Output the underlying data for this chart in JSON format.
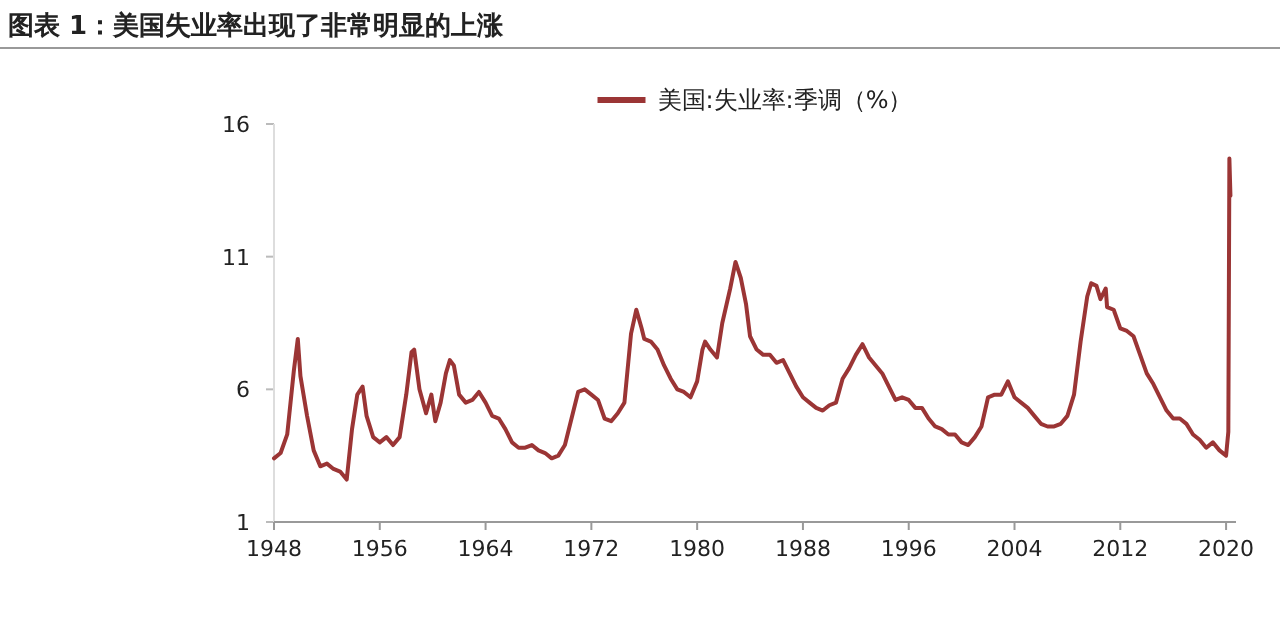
{
  "chart_data": {
    "type": "line",
    "title": "图表 1：美国失业率出现了非常明显的上涨",
    "legend": "top",
    "x": [
      1948.0,
      1948.5,
      1949.0,
      1949.5,
      1949.8,
      1950.0,
      1950.5,
      1951.0,
      1951.5,
      1952.0,
      1952.5,
      1953.0,
      1953.5,
      1953.9,
      1954.3,
      1954.7,
      1955.0,
      1955.5,
      1956.0,
      1956.5,
      1957.0,
      1957.5,
      1958.0,
      1958.4,
      1958.6,
      1959.0,
      1959.5,
      1959.9,
      1960.2,
      1960.6,
      1961.0,
      1961.3,
      1961.6,
      1962.0,
      1962.5,
      1963.0,
      1963.5,
      1964.0,
      1964.5,
      1965.0,
      1965.5,
      1966.0,
      1966.5,
      1967.0,
      1967.5,
      1968.0,
      1968.5,
      1969.0,
      1969.5,
      1970.0,
      1970.5,
      1971.0,
      1971.5,
      1972.0,
      1972.5,
      1973.0,
      1973.5,
      1974.0,
      1974.5,
      1975.0,
      1975.4,
      1975.8,
      1976.0,
      1976.5,
      1977.0,
      1977.5,
      1978.0,
      1978.5,
      1979.0,
      1979.5,
      1980.0,
      1980.4,
      1980.6,
      1981.0,
      1981.5,
      1981.9,
      1982.5,
      1982.9,
      1983.3,
      1983.7,
      1984.0,
      1984.5,
      1985.0,
      1985.5,
      1986.0,
      1986.5,
      1987.0,
      1987.5,
      1988.0,
      1988.5,
      1989.0,
      1989.5,
      1990.0,
      1990.5,
      1991.0,
      1991.5,
      1992.0,
      1992.5,
      1993.0,
      1993.5,
      1994.0,
      1994.5,
      1995.0,
      1995.5,
      1996.0,
      1996.5,
      1997.0,
      1997.5,
      1998.0,
      1998.5,
      1999.0,
      1999.5,
      2000.0,
      2000.5,
      2001.0,
      2001.5,
      2002.0,
      2002.5,
      2003.0,
      2003.5,
      2004.0,
      2004.5,
      2005.0,
      2005.5,
      2006.0,
      2006.5,
      2007.0,
      2007.5,
      2008.0,
      2008.5,
      2009.0,
      2009.5,
      2009.8,
      2010.2,
      2010.5,
      2010.9,
      2011.0,
      2011.5,
      2012.0,
      2012.5,
      2013.0,
      2013.5,
      2014.0,
      2014.5,
      2015.0,
      2015.5,
      2016.0,
      2016.5,
      2017.0,
      2017.5,
      2018.0,
      2018.5,
      2019.0,
      2019.5,
      2020.0,
      2020.17,
      2020.25,
      2020.33
    ],
    "series": [
      {
        "name": "美国:失业率:季调（%）",
        "color": "#9b3535",
        "values": [
          3.4,
          3.6,
          4.3,
          6.7,
          7.9,
          6.5,
          5.0,
          3.7,
          3.1,
          3.2,
          3.0,
          2.9,
          2.6,
          4.5,
          5.8,
          6.1,
          5.0,
          4.2,
          4.0,
          4.2,
          3.9,
          4.2,
          5.8,
          7.4,
          7.5,
          6.0,
          5.1,
          5.8,
          4.8,
          5.5,
          6.6,
          7.1,
          6.9,
          5.8,
          5.5,
          5.6,
          5.9,
          5.5,
          5.0,
          4.9,
          4.5,
          4.0,
          3.8,
          3.8,
          3.9,
          3.7,
          3.6,
          3.4,
          3.5,
          3.9,
          4.9,
          5.9,
          6.0,
          5.8,
          5.6,
          4.9,
          4.8,
          5.1,
          5.5,
          8.1,
          9.0,
          8.3,
          7.9,
          7.8,
          7.5,
          6.9,
          6.4,
          6.0,
          5.9,
          5.7,
          6.3,
          7.5,
          7.8,
          7.5,
          7.2,
          8.5,
          9.8,
          10.8,
          10.2,
          9.2,
          8.0,
          7.5,
          7.3,
          7.3,
          7.0,
          7.1,
          6.6,
          6.1,
          5.7,
          5.5,
          5.3,
          5.2,
          5.4,
          5.5,
          6.4,
          6.8,
          7.3,
          7.7,
          7.2,
          6.9,
          6.6,
          6.1,
          5.6,
          5.7,
          5.6,
          5.3,
          5.3,
          4.9,
          4.6,
          4.5,
          4.3,
          4.3,
          4.0,
          3.9,
          4.2,
          4.6,
          5.7,
          5.8,
          5.8,
          6.3,
          5.7,
          5.5,
          5.3,
          5.0,
          4.7,
          4.6,
          4.6,
          4.7,
          5.0,
          5.8,
          7.8,
          9.5,
          10.0,
          9.9,
          9.4,
          9.8,
          9.1,
          9.0,
          8.3,
          8.2,
          8.0,
          7.3,
          6.6,
          6.2,
          5.7,
          5.2,
          4.9,
          4.9,
          4.7,
          4.3,
          4.1,
          3.8,
          4.0,
          3.7,
          3.5,
          4.4,
          14.7,
          13.3
        ]
      }
    ],
    "xlim": [
      1948,
      2020.75
    ],
    "xticks": [
      1948,
      1956,
      1964,
      1972,
      1980,
      1988,
      1996,
      2004,
      2012,
      2020
    ],
    "ylim": [
      1,
      16
    ],
    "yticks": [
      1,
      6,
      11,
      16
    ]
  }
}
